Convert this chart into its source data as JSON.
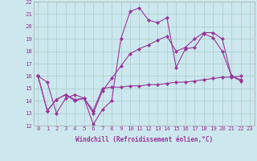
{
  "xlabel": "Windchill (Refroidissement éolien,°C)",
  "background_color": "#cce8ee",
  "line_color": "#993399",
  "grid_color": "#aacccc",
  "spine_color": "#aaaaaa",
  "xlim": [
    -0.5,
    23.5
  ],
  "ylim": [
    12,
    22
  ],
  "xticks": [
    0,
    1,
    2,
    3,
    4,
    5,
    6,
    7,
    8,
    9,
    10,
    11,
    12,
    13,
    14,
    15,
    16,
    17,
    18,
    19,
    20,
    21,
    22,
    23
  ],
  "yticks": [
    12,
    13,
    14,
    15,
    16,
    17,
    18,
    19,
    20,
    21,
    22
  ],
  "series": [
    [
      16.0,
      15.5,
      13.0,
      14.2,
      14.5,
      14.2,
      12.1,
      13.3,
      14.0,
      19.0,
      21.2,
      21.5,
      20.5,
      20.3,
      20.7,
      16.7,
      18.2,
      18.3,
      19.4,
      19.1,
      18.0,
      16.0,
      15.6
    ],
    [
      16.0,
      13.2,
      14.1,
      14.5,
      14.0,
      14.2,
      13.0,
      14.8,
      15.8,
      16.8,
      17.8,
      18.2,
      18.5,
      18.9,
      19.2,
      18.0,
      18.3,
      19.0,
      19.5,
      19.5,
      19.0,
      16.0,
      15.7
    ],
    [
      16.0,
      13.2,
      14.1,
      14.5,
      14.1,
      14.2,
      13.2,
      15.0,
      15.1,
      15.1,
      15.2,
      15.2,
      15.3,
      15.3,
      15.4,
      15.5,
      15.5,
      15.6,
      15.7,
      15.8,
      15.9,
      15.9,
      16.0
    ]
  ],
  "marker": "D",
  "markersize": 2.2,
  "linewidth": 0.8,
  "xlabel_fontsize": 5.5,
  "tick_fontsize": 5.2
}
